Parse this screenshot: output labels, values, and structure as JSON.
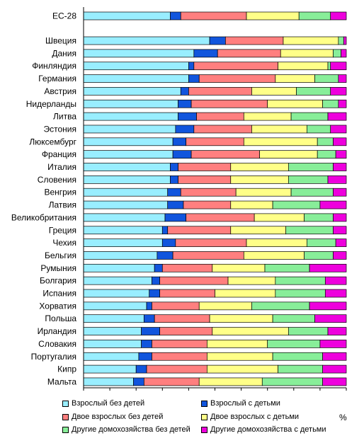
{
  "chart_data": {
    "type": "bar",
    "orientation": "horizontal",
    "stacked": true,
    "unit": "%",
    "xlim": [
      0,
      100
    ],
    "xticks": [
      0,
      10,
      20,
      30,
      40,
      50,
      60,
      70,
      80,
      90,
      100
    ],
    "grid": false,
    "legend_position": "bottom",
    "categories": [
      "ЕС-28",
      "Швеция",
      "Дания",
      "Финляндия",
      "Германия",
      "Австрия",
      "Нидерланды",
      "Литва",
      "Эстония",
      "Люксембург",
      "Франция",
      "Италия",
      "Словения",
      "Венгрия",
      "Латвия",
      "Великобритания",
      "Греция",
      "Чехия",
      "Бельгия",
      "Румыния",
      "Болгария",
      "Испания",
      "Хорватия",
      "Польша",
      "Ирландия",
      "Словакия",
      "Португалия",
      "Кипр",
      "Мальта"
    ],
    "gap_after_first": true,
    "series": [
      {
        "name": "Взрослый без детей",
        "color": "#99eeff",
        "values": [
          33,
          48,
          42,
          40,
          40,
          37,
          36,
          36,
          35,
          34,
          34,
          33,
          33,
          32,
          32,
          31,
          30,
          30,
          28,
          27,
          26,
          25,
          24,
          23,
          22,
          22,
          21,
          20,
          19
        ]
      },
      {
        "name": "Взрослый с детьми",
        "color": "#1155dd",
        "values": [
          4,
          6,
          9,
          2,
          4,
          3,
          5,
          7,
          7,
          5,
          7,
          3,
          3,
          5,
          6,
          8,
          2,
          5,
          6,
          3,
          3,
          4,
          2,
          4,
          7,
          4,
          5,
          4,
          4
        ]
      },
      {
        "name": "Двое взрослых без детей",
        "color": "#ff7f7f",
        "values": [
          25,
          22,
          24,
          32,
          29,
          24,
          29,
          18,
          22,
          22,
          26,
          20,
          20,
          21,
          18,
          26,
          24,
          27,
          27,
          19,
          26,
          21,
          18,
          21,
          20,
          21,
          21,
          23,
          21
        ]
      },
      {
        "name": "Двое взрослых с детьми",
        "color": "#ffff88",
        "values": [
          20,
          21,
          20,
          19,
          15,
          17,
          21,
          18,
          21,
          28,
          22,
          22,
          22,
          21,
          16,
          19,
          21,
          23,
          23,
          20,
          18,
          23,
          20,
          24,
          29,
          23,
          25,
          27,
          24
        ]
      },
      {
        "name": "Другие домохозяйства без детей",
        "color": "#88ee99",
        "values": [
          12,
          2,
          3,
          1,
          9,
          13,
          6,
          14,
          9,
          6,
          7,
          17,
          15,
          16,
          18,
          11,
          18,
          11,
          11,
          17,
          19,
          19,
          22,
          16,
          15,
          20,
          19,
          17,
          23
        ]
      },
      {
        "name": "Другие домохозяйства с детьми",
        "color": "#ee00dd",
        "values": [
          6,
          1,
          2,
          6,
          3,
          6,
          3,
          7,
          6,
          5,
          4,
          5,
          7,
          5,
          10,
          5,
          5,
          4,
          5,
          14,
          8,
          8,
          14,
          12,
          7,
          10,
          9,
          9,
          9
        ]
      }
    ],
    "title": "",
    "xlabel": "",
    "ylabel": ""
  },
  "legend": {
    "items": [
      {
        "label": "Взрослый без детей",
        "color": "#99eeff"
      },
      {
        "label": "Взрослый с детьми",
        "color": "#1155dd"
      },
      {
        "label": "Двое взрослых без детей",
        "color": "#ff7f7f"
      },
      {
        "label": "Двое взрослых с детьми",
        "color": "#ffff88"
      },
      {
        "label": "Другие домохозяйства без детей",
        "color": "#88ee99"
      },
      {
        "label": "Другие домохозяйства с детьми",
        "color": "#ee00dd"
      }
    ],
    "unit_label": "%"
  }
}
